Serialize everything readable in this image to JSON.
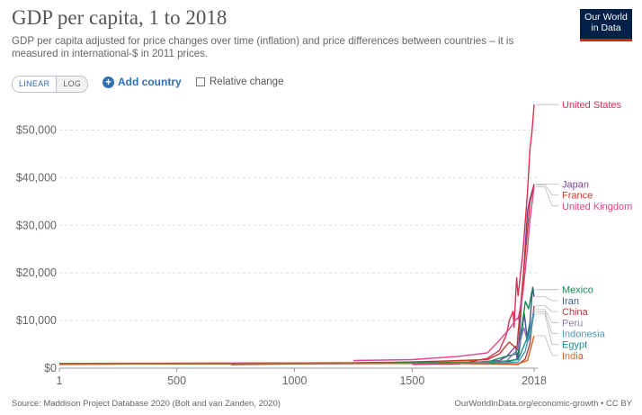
{
  "header": {
    "title": "GDP per capita, 1 to 2018",
    "subtitle": "GDP per capita adjusted for price changes over time (inflation) and price differences between countries – it is measured in international-$ in 2011 prices.",
    "logo_line1": "Our World",
    "logo_line2": "in Data"
  },
  "controls": {
    "linear_label": "LINEAR",
    "log_label": "LOG",
    "add_country_label": "Add country",
    "relative_change_label": "Relative change"
  },
  "footer": {
    "source": "Source: Maddison Project Database 2020 (Bolt and van Zanden, 2020)",
    "url": "OurWorldInData.org/economic-growth • CC BY"
  },
  "colors": {
    "brand_navy": "#002147",
    "brand_red": "#ce261e",
    "accent_blue": "#2f6fb3"
  },
  "chart_data": {
    "type": "line",
    "x_ticks": [
      "1",
      "500",
      "1000",
      "1500",
      "2018"
    ],
    "y_ticks": [
      "$0",
      "$10,000",
      "$20,000",
      "$30,000",
      "$40,000",
      "$50,000"
    ],
    "xlim": [
      1,
      2018
    ],
    "ylim": [
      0,
      55000
    ],
    "grid": "horizontal dashed",
    "legend": "right, line labels",
    "series": [
      {
        "name": "United States",
        "color": "#dd2c55",
        "points": [
          [
            1500,
            800
          ],
          [
            1700,
            900
          ],
          [
            1820,
            2080
          ],
          [
            1870,
            3700
          ],
          [
            1900,
            7000
          ],
          [
            1913,
            10100
          ],
          [
            1929,
            11950
          ],
          [
            1933,
            8600
          ],
          [
            1944,
            19000
          ],
          [
            1950,
            15240
          ],
          [
            1970,
            23960
          ],
          [
            1990,
            36980
          ],
          [
            2000,
            45890
          ],
          [
            2009,
            49500
          ],
          [
            2018,
            55335
          ]
        ]
      },
      {
        "name": "Japan",
        "color": "#7b3fa0",
        "points": [
          [
            730,
            750
          ],
          [
            1000,
            900
          ],
          [
            1500,
            1000
          ],
          [
            1700,
            1000
          ],
          [
            1870,
            1580
          ],
          [
            1900,
            2400
          ],
          [
            1940,
            4600
          ],
          [
            1945,
            2200
          ],
          [
            1950,
            3060
          ],
          [
            1970,
            17400
          ],
          [
            1990,
            33100
          ],
          [
            2000,
            35400
          ],
          [
            2018,
            38674
          ]
        ]
      },
      {
        "name": "France",
        "color": "#c0392b",
        "points": [
          [
            1,
            900
          ],
          [
            1000,
            900
          ],
          [
            1500,
            1300
          ],
          [
            1700,
            1600
          ],
          [
            1820,
            1800
          ],
          [
            1870,
            3000
          ],
          [
            1913,
            5500
          ],
          [
            1945,
            4000
          ],
          [
            1950,
            7400
          ],
          [
            1970,
            18200
          ],
          [
            1990,
            29100
          ],
          [
            2000,
            34700
          ],
          [
            2018,
            38516
          ]
        ]
      },
      {
        "name": "United Kingdom",
        "color": "#e0448a",
        "points": [
          [
            1250,
            1600
          ],
          [
            1500,
            1800
          ],
          [
            1700,
            2500
          ],
          [
            1820,
            3240
          ],
          [
            1870,
            5830
          ],
          [
            1913,
            8240
          ],
          [
            1945,
            10500
          ],
          [
            1950,
            10300
          ],
          [
            1970,
            15600
          ],
          [
            1990,
            25200
          ],
          [
            2000,
            31000
          ],
          [
            2018,
            38058
          ]
        ]
      },
      {
        "name": "Iran",
        "color": "#3c5a82",
        "points": [
          [
            1820,
            900
          ],
          [
            1900,
            1200
          ],
          [
            1950,
            2000
          ],
          [
            1976,
            11500
          ],
          [
            1988,
            6500
          ],
          [
            2000,
            9500
          ],
          [
            2012,
            17000
          ],
          [
            2018,
            15000
          ]
        ]
      },
      {
        "name": "Mexico",
        "color": "#0e8a4f",
        "points": [
          [
            1,
            800
          ],
          [
            1820,
            1300
          ],
          [
            1900,
            2500
          ],
          [
            1950,
            3100
          ],
          [
            1981,
            14000
          ],
          [
            1995,
            12500
          ],
          [
            2008,
            16000
          ],
          [
            2018,
            16494
          ]
        ]
      },
      {
        "name": "China",
        "color": "#b83a3a",
        "points": [
          [
            1,
            1000
          ],
          [
            1000,
            1100
          ],
          [
            1500,
            1100
          ],
          [
            1820,
            900
          ],
          [
            1950,
            800
          ],
          [
            1980,
            1900
          ],
          [
            2000,
            5000
          ],
          [
            2018,
            13102
          ]
        ]
      },
      {
        "name": "Peru",
        "color": "#8a7ab5",
        "points": [
          [
            1700,
            1000
          ],
          [
            1900,
            1500
          ],
          [
            1950,
            4000
          ],
          [
            1975,
            8500
          ],
          [
            1990,
            5400
          ],
          [
            2018,
            12310
          ]
        ]
      },
      {
        "name": "Egypt",
        "color": "#1f8f8f",
        "points": [
          [
            1,
            900
          ],
          [
            730,
            900
          ],
          [
            1820,
            1100
          ],
          [
            1950,
            1800
          ],
          [
            1990,
            6500
          ],
          [
            2018,
            11366
          ]
        ]
      },
      {
        "name": "Indonesia",
        "color": "#4a99b5",
        "points": [
          [
            1820,
            900
          ],
          [
            1950,
            1300
          ],
          [
            1980,
            3500
          ],
          [
            1997,
            7000
          ],
          [
            1999,
            6000
          ],
          [
            2018,
            11852
          ]
        ]
      },
      {
        "name": "India",
        "color": "#d2661e",
        "points": [
          [
            1,
            900
          ],
          [
            1500,
            1000
          ],
          [
            1700,
            1100
          ],
          [
            1820,
            1000
          ],
          [
            1950,
            900
          ],
          [
            1990,
            1600
          ],
          [
            2018,
            6806
          ]
        ]
      }
    ]
  }
}
